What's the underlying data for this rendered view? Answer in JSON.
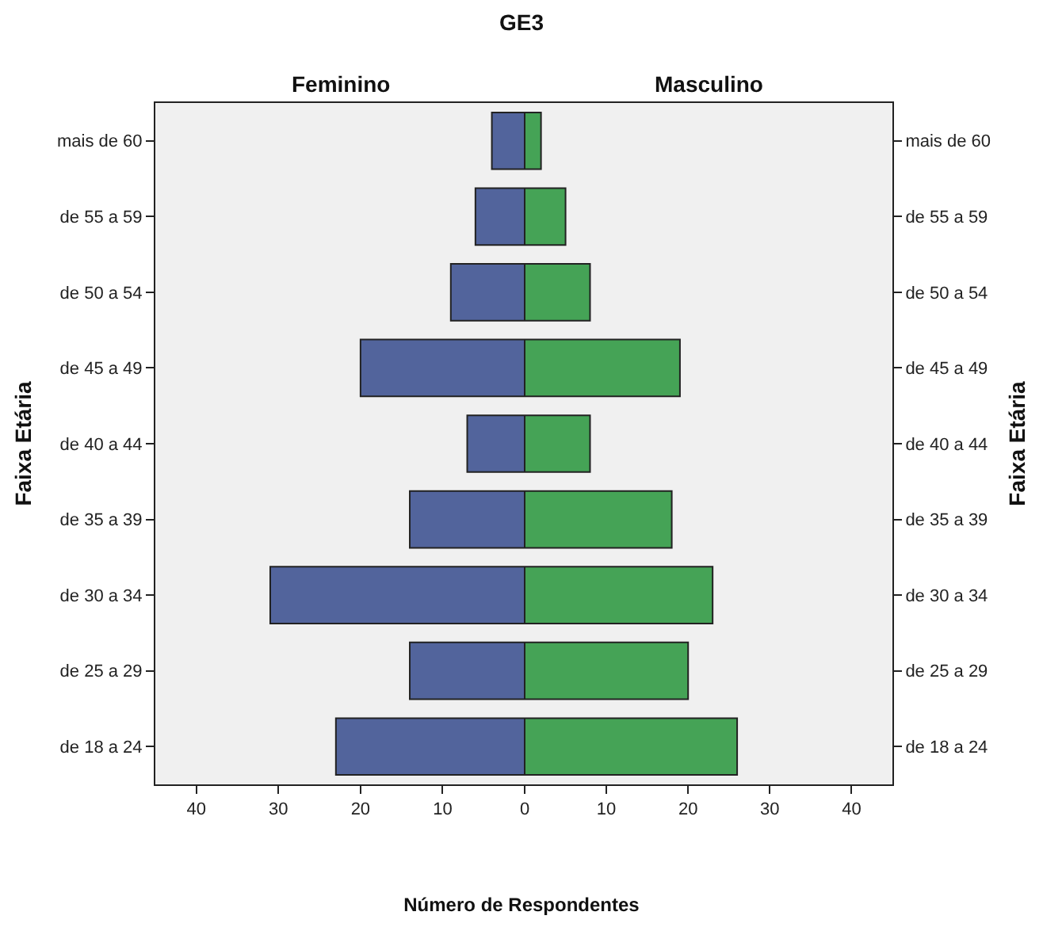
{
  "chart_data": [
    {
      "type": "bar",
      "orientation": "horizontal",
      "title": "Feminino",
      "annotations": [
        "GE3"
      ],
      "xlabel": "Número de Respondentes",
      "ylabel": "Faixa Etária",
      "categories": [
        "mais de 60",
        "de 55 a 59",
        "de 50 a 54",
        "de 45 a 49",
        "de 40 a 44",
        "de 35 a 39",
        "de 30 a 34",
        "de 25 a 29",
        "de 18 a 24"
      ],
      "values": [
        4,
        6,
        9,
        20,
        7,
        14,
        31,
        14,
        23
      ],
      "color": "#52649c",
      "xlim": [
        45,
        0
      ],
      "xticks": [
        40,
        30,
        20,
        10,
        0
      ],
      "grid": false
    },
    {
      "type": "bar",
      "orientation": "horizontal",
      "title": "Masculino",
      "ylabel": "Faixa Etária",
      "categories": [
        "mais de 60",
        "de 55 a 59",
        "de 50 a 54",
        "de 45 a 49",
        "de 40 a 44",
        "de 35 a 39",
        "de 30 a 34",
        "de 25 a 29",
        "de 18 a 24"
      ],
      "values": [
        2,
        5,
        8,
        19,
        8,
        18,
        23,
        20,
        26
      ],
      "color": "#45a356",
      "xlim": [
        0,
        45
      ],
      "xticks": [
        {
          "value": 0,
          "label": null
        },
        10,
        20,
        30,
        40
      ],
      "grid": false
    }
  ]
}
